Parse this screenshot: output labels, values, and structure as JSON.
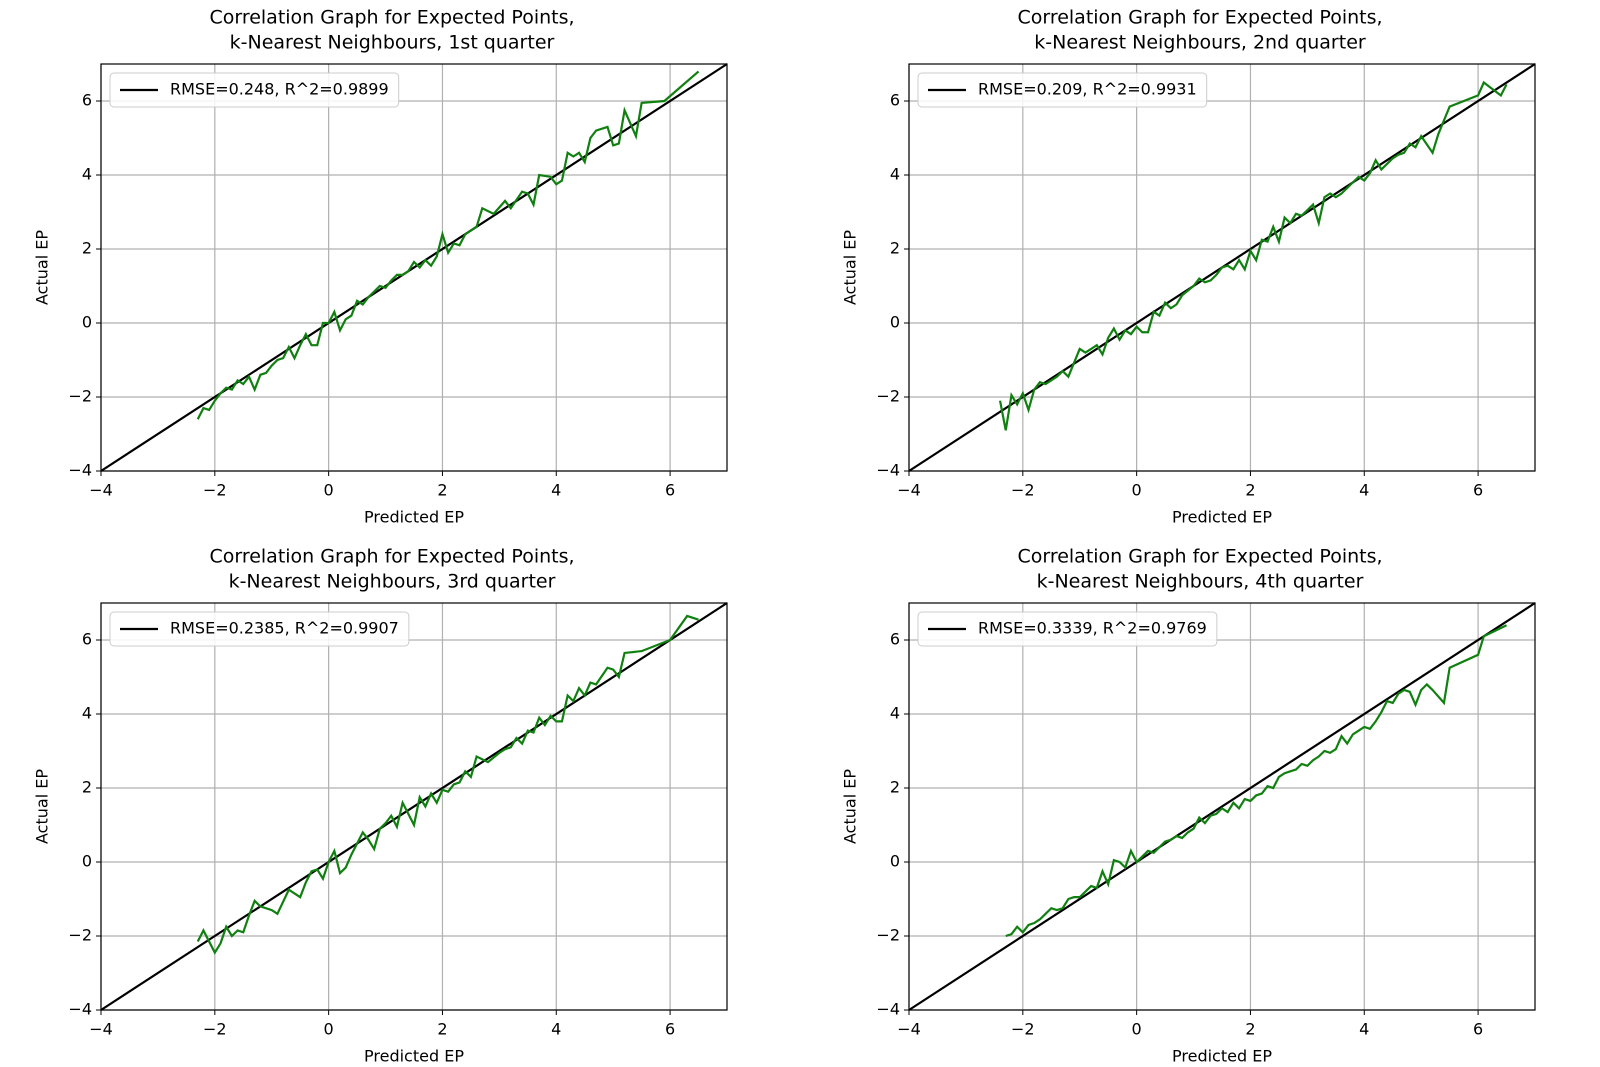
{
  "chart_data": [
    {
      "type": "line",
      "title": [
        "Correlation Graph for Expected Points,",
        "k-Nearest Neighbours, 1st quarter"
      ],
      "xlabel": "Predicted EP",
      "ylabel": "Actual EP",
      "xlim": [
        -4,
        7
      ],
      "ylim": [
        -4,
        7
      ],
      "xticks": [
        {
          "value": -4,
          "label": "−4"
        },
        {
          "value": -2,
          "label": "−2"
        },
        0,
        2,
        4,
        6
      ],
      "yticks": [
        {
          "value": -4,
          "label": "−4"
        },
        {
          "value": -2,
          "label": "−2"
        },
        0,
        2,
        4,
        6
      ],
      "grid": true,
      "legend": "upper left",
      "series": [
        {
          "name": "RMSE=0.248, R^2=0.9899",
          "color": "#000000",
          "x": [
            -4,
            7
          ],
          "values": [
            -4,
            7
          ]
        },
        {
          "color": "#108010",
          "x": [
            -2.3,
            -2.2,
            -2.1,
            -2.0,
            -1.9,
            -1.8,
            -1.7,
            -1.6,
            -1.5,
            -1.4,
            -1.3,
            -1.2,
            -1.1,
            -1.0,
            -0.9,
            -0.8,
            -0.7,
            -0.6,
            -0.5,
            -0.4,
            -0.3,
            -0.2,
            -0.1,
            0.0,
            0.1,
            0.2,
            0.3,
            0.4,
            0.5,
            0.6,
            0.7,
            0.8,
            0.9,
            1.0,
            1.1,
            1.2,
            1.3,
            1.4,
            1.5,
            1.6,
            1.7,
            1.8,
            1.9,
            2.0,
            2.1,
            2.2,
            2.3,
            2.4,
            2.6,
            2.7,
            2.9,
            3.1,
            3.2,
            3.4,
            3.5,
            3.6,
            3.7,
            3.9,
            4.0,
            4.1,
            4.2,
            4.3,
            4.4,
            4.5,
            4.6,
            4.7,
            4.9,
            5.0,
            5.1,
            5.2,
            5.4,
            5.5,
            5.9,
            6.5
          ],
          "values": [
            -2.6,
            -2.3,
            -2.35,
            -2.1,
            -1.9,
            -1.75,
            -1.8,
            -1.55,
            -1.65,
            -1.45,
            -1.8,
            -1.4,
            -1.35,
            -1.15,
            -1.0,
            -0.95,
            -0.65,
            -0.95,
            -0.6,
            -0.3,
            -0.6,
            -0.6,
            0.0,
            0.0,
            0.3,
            -0.2,
            0.1,
            0.2,
            0.6,
            0.5,
            0.7,
            0.85,
            1.0,
            0.95,
            1.15,
            1.3,
            1.3,
            1.4,
            1.65,
            1.5,
            1.7,
            1.55,
            1.8,
            2.4,
            1.9,
            2.15,
            2.1,
            2.4,
            2.6,
            3.1,
            2.95,
            3.3,
            3.1,
            3.55,
            3.5,
            3.2,
            4.0,
            3.95,
            3.75,
            3.85,
            4.6,
            4.5,
            4.6,
            4.35,
            5.0,
            5.2,
            5.3,
            4.8,
            4.85,
            5.75,
            5.05,
            5.95,
            6.0,
            6.8
          ]
        }
      ]
    },
    {
      "type": "line",
      "title": [
        "Correlation Graph for Expected Points,",
        "k-Nearest Neighbours, 2nd quarter"
      ],
      "xlabel": "Predicted EP",
      "ylabel": "Actual EP",
      "xlim": [
        -4,
        7
      ],
      "ylim": [
        -4,
        7
      ],
      "xticks": [
        {
          "value": -4,
          "label": "−4"
        },
        {
          "value": -2,
          "label": "−2"
        },
        0,
        2,
        4,
        6
      ],
      "yticks": [
        {
          "value": -4,
          "label": "−4"
        },
        {
          "value": -2,
          "label": "−2"
        },
        0,
        2,
        4,
        6
      ],
      "grid": true,
      "legend": "upper left",
      "series": [
        {
          "name": "RMSE=0.209, R^2=0.9931",
          "color": "#000000",
          "x": [
            -4,
            7
          ],
          "values": [
            -4,
            7
          ]
        },
        {
          "color": "#108010",
          "x": [
            -2.4,
            -2.3,
            -2.2,
            -2.1,
            -2.0,
            -1.9,
            -1.8,
            -1.7,
            -1.6,
            -1.4,
            -1.3,
            -1.2,
            -1.0,
            -0.9,
            -0.8,
            -0.7,
            -0.6,
            -0.5,
            -0.4,
            -0.3,
            -0.2,
            -0.1,
            0.0,
            0.1,
            0.2,
            0.3,
            0.4,
            0.5,
            0.6,
            0.7,
            0.8,
            1.0,
            1.1,
            1.2,
            1.3,
            1.4,
            1.5,
            1.6,
            1.7,
            1.8,
            1.9,
            2.0,
            2.1,
            2.2,
            2.3,
            2.4,
            2.5,
            2.6,
            2.7,
            2.8,
            2.9,
            3.0,
            3.1,
            3.2,
            3.3,
            3.4,
            3.5,
            3.6,
            3.8,
            3.9,
            4.0,
            4.1,
            4.2,
            4.3,
            4.5,
            4.6,
            4.7,
            4.8,
            4.9,
            5.0,
            5.2,
            5.3,
            5.5,
            6.0,
            6.1,
            6.4,
            6.5
          ],
          "values": [
            -2.1,
            -2.9,
            -1.95,
            -2.2,
            -1.9,
            -2.35,
            -1.8,
            -1.6,
            -1.65,
            -1.45,
            -1.3,
            -1.45,
            -0.7,
            -0.8,
            -0.7,
            -0.6,
            -0.85,
            -0.4,
            -0.15,
            -0.45,
            -0.2,
            -0.3,
            -0.1,
            -0.25,
            -0.25,
            0.3,
            0.2,
            0.55,
            0.4,
            0.5,
            0.75,
            1.0,
            1.2,
            1.1,
            1.15,
            1.3,
            1.5,
            1.55,
            1.45,
            1.7,
            1.45,
            1.95,
            1.7,
            2.25,
            2.2,
            2.6,
            2.2,
            2.85,
            2.7,
            2.95,
            2.9,
            3.05,
            3.2,
            2.7,
            3.4,
            3.5,
            3.4,
            3.5,
            3.8,
            3.95,
            3.85,
            4.05,
            4.4,
            4.15,
            4.45,
            4.55,
            4.6,
            4.85,
            4.75,
            5.05,
            4.6,
            5.1,
            5.85,
            6.15,
            6.5,
            6.15,
            6.45
          ]
        }
      ]
    },
    {
      "type": "line",
      "title": [
        "Correlation Graph for Expected Points,",
        "k-Nearest Neighbours, 3rd quarter"
      ],
      "xlabel": "Predicted EP",
      "ylabel": "Actual EP",
      "xlim": [
        -4,
        7
      ],
      "ylim": [
        -4,
        7
      ],
      "xticks": [
        {
          "value": -4,
          "label": "−4"
        },
        {
          "value": -2,
          "label": "−2"
        },
        0,
        2,
        4,
        6
      ],
      "yticks": [
        {
          "value": -4,
          "label": "−4"
        },
        {
          "value": -2,
          "label": "−2"
        },
        0,
        2,
        4,
        6
      ],
      "grid": true,
      "legend": "upper left",
      "series": [
        {
          "name": "RMSE=0.2385, R^2=0.9907",
          "color": "#000000",
          "x": [
            -4,
            7
          ],
          "values": [
            -4,
            7
          ]
        },
        {
          "color": "#108010",
          "x": [
            -2.3,
            -2.2,
            -2.0,
            -1.9,
            -1.8,
            -1.7,
            -1.6,
            -1.5,
            -1.4,
            -1.3,
            -1.2,
            -1.0,
            -0.9,
            -0.7,
            -0.6,
            -0.5,
            -0.4,
            -0.3,
            -0.2,
            -0.1,
            0.0,
            0.1,
            0.2,
            0.3,
            0.4,
            0.6,
            0.7,
            0.8,
            0.9,
            1.0,
            1.1,
            1.2,
            1.3,
            1.4,
            1.5,
            1.6,
            1.7,
            1.8,
            1.9,
            2.0,
            2.1,
            2.2,
            2.3,
            2.4,
            2.5,
            2.6,
            2.8,
            3.0,
            3.1,
            3.2,
            3.3,
            3.4,
            3.5,
            3.6,
            3.7,
            3.8,
            3.9,
            4.0,
            4.1,
            4.2,
            4.3,
            4.4,
            4.5,
            4.6,
            4.7,
            4.9,
            5.0,
            5.1,
            5.2,
            5.5,
            6.0,
            6.3,
            6.5
          ],
          "values": [
            -2.15,
            -1.85,
            -2.45,
            -2.2,
            -1.75,
            -2.0,
            -1.85,
            -1.9,
            -1.45,
            -1.05,
            -1.2,
            -1.3,
            -1.4,
            -0.75,
            -0.85,
            -0.95,
            -0.55,
            -0.25,
            -0.2,
            -0.45,
            0.0,
            0.3,
            -0.3,
            -0.15,
            0.2,
            0.8,
            0.6,
            0.35,
            0.9,
            1.05,
            1.25,
            0.95,
            1.6,
            1.3,
            1.0,
            1.75,
            1.5,
            1.85,
            1.6,
            1.95,
            1.9,
            2.1,
            2.15,
            2.45,
            2.3,
            2.85,
            2.7,
            2.95,
            3.05,
            3.1,
            3.35,
            3.2,
            3.55,
            3.5,
            3.9,
            3.7,
            3.95,
            3.8,
            3.8,
            4.5,
            4.35,
            4.7,
            4.5,
            4.85,
            4.8,
            5.25,
            5.2,
            5.0,
            5.65,
            5.7,
            6.0,
            6.65,
            6.55
          ]
        }
      ]
    },
    {
      "type": "line",
      "title": [
        "Correlation Graph for Expected Points,",
        "k-Nearest Neighbours, 4th quarter"
      ],
      "xlabel": "Predicted EP",
      "ylabel": "Actual EP",
      "xlim": [
        -4,
        7
      ],
      "ylim": [
        -4,
        7
      ],
      "xticks": [
        {
          "value": -4,
          "label": "−4"
        },
        {
          "value": -2,
          "label": "−2"
        },
        0,
        2,
        4,
        6
      ],
      "yticks": [
        {
          "value": -4,
          "label": "−4"
        },
        {
          "value": -2,
          "label": "−2"
        },
        0,
        2,
        4,
        6
      ],
      "grid": true,
      "legend": "upper left",
      "series": [
        {
          "name": "RMSE=0.3339, R^2=0.9769",
          "color": "#000000",
          "x": [
            -4,
            7
          ],
          "values": [
            -4,
            7
          ]
        },
        {
          "color": "#108010",
          "x": [
            -2.3,
            -2.2,
            -2.1,
            -2.0,
            -1.9,
            -1.8,
            -1.7,
            -1.6,
            -1.5,
            -1.4,
            -1.3,
            -1.2,
            -1.1,
            -1.0,
            -0.9,
            -0.8,
            -0.7,
            -0.6,
            -0.5,
            -0.4,
            -0.3,
            -0.2,
            -0.1,
            0.0,
            0.1,
            0.2,
            0.3,
            0.4,
            0.5,
            0.6,
            0.7,
            0.8,
            0.9,
            1.0,
            1.1,
            1.2,
            1.3,
            1.4,
            1.5,
            1.6,
            1.7,
            1.8,
            1.9,
            2.0,
            2.1,
            2.2,
            2.3,
            2.4,
            2.5,
            2.6,
            2.7,
            2.8,
            2.9,
            3.0,
            3.1,
            3.2,
            3.3,
            3.4,
            3.5,
            3.6,
            3.7,
            3.8,
            3.9,
            4.0,
            4.1,
            4.2,
            4.3,
            4.4,
            4.5,
            4.6,
            4.7,
            4.8,
            4.9,
            5.0,
            5.1,
            5.2,
            5.4,
            5.5,
            6.0,
            6.1,
            6.5
          ],
          "values": [
            -2.0,
            -1.95,
            -1.75,
            -1.9,
            -1.7,
            -1.65,
            -1.55,
            -1.4,
            -1.25,
            -1.3,
            -1.25,
            -1.0,
            -0.95,
            -0.95,
            -0.8,
            -0.65,
            -0.7,
            -0.25,
            -0.6,
            0.05,
            0.0,
            -0.15,
            0.3,
            0.0,
            0.15,
            0.3,
            0.25,
            0.4,
            0.55,
            0.6,
            0.7,
            0.65,
            0.8,
            0.9,
            1.2,
            1.05,
            1.25,
            1.3,
            1.45,
            1.35,
            1.6,
            1.45,
            1.7,
            1.65,
            1.8,
            1.85,
            2.05,
            2.0,
            2.3,
            2.4,
            2.45,
            2.5,
            2.65,
            2.6,
            2.75,
            2.85,
            3.0,
            2.95,
            3.05,
            3.4,
            3.2,
            3.45,
            3.55,
            3.65,
            3.6,
            3.8,
            4.05,
            4.35,
            4.3,
            4.55,
            4.65,
            4.6,
            4.25,
            4.65,
            4.8,
            4.65,
            4.3,
            5.25,
            5.6,
            6.1,
            6.4
          ]
        }
      ]
    }
  ]
}
